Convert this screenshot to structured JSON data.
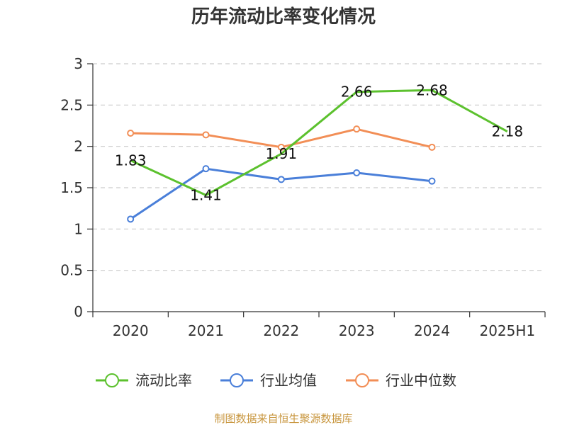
{
  "chart_data": {
    "type": "line",
    "title": "历年流动比率变化情况",
    "categories": [
      "2020",
      "2021",
      "2022",
      "2023",
      "2024",
      "2025H1"
    ],
    "ylim": [
      0,
      3
    ],
    "yticks": [
      "0",
      "0.5",
      "1",
      "1.5",
      "2",
      "2.5",
      "3"
    ],
    "ytick_values": [
      0,
      0.5,
      1,
      1.5,
      2,
      2.5,
      3
    ],
    "grid": true,
    "legend_position": "bottom",
    "series": [
      {
        "name": "流动比率",
        "color": "#5cc12e",
        "values": [
          1.83,
          1.41,
          1.91,
          2.66,
          2.68,
          2.18
        ],
        "labels": [
          "1.83",
          "1.41",
          "1.91",
          "2.66",
          "2.68",
          "2.18"
        ]
      },
      {
        "name": "行业均值",
        "color": "#4a7fd9",
        "values": [
          1.12,
          1.73,
          1.6,
          1.68,
          1.58,
          null
        ]
      },
      {
        "name": "行业中位数",
        "color": "#f28e56",
        "values": [
          2.16,
          2.14,
          1.99,
          2.21,
          1.99,
          null
        ]
      }
    ],
    "source": "制图数据来自恒生聚源数据库"
  }
}
